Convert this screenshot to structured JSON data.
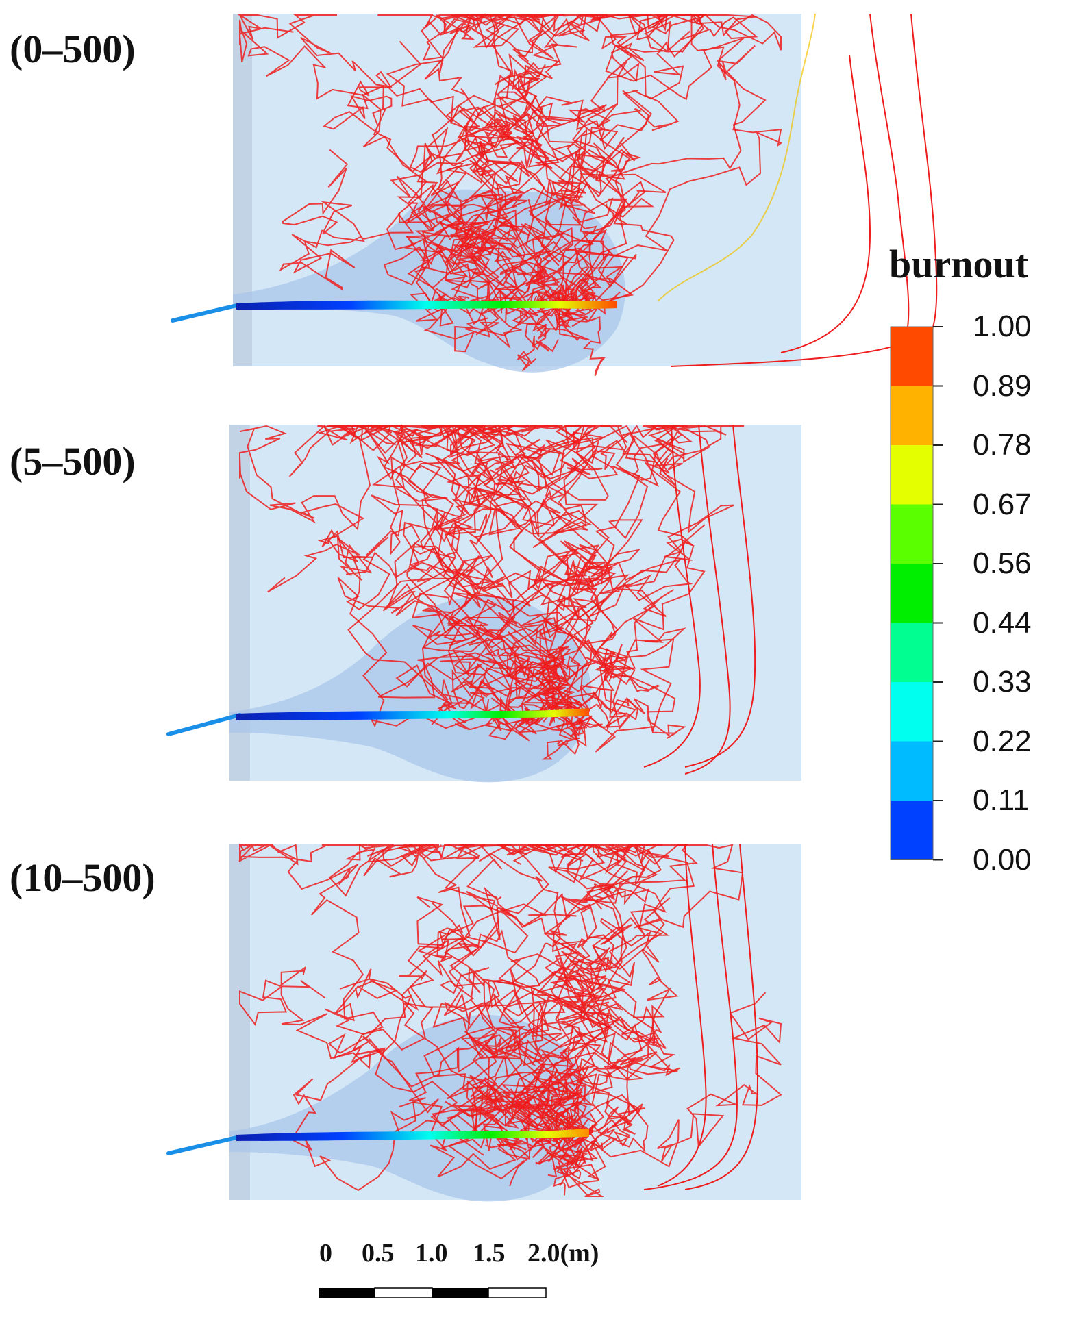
{
  "panels": [
    {
      "label": "(0–500)"
    },
    {
      "label": "(5–500)"
    },
    {
      "label": "(10–500)"
    }
  ],
  "colorbar": {
    "title": "burnout",
    "ticks": [
      "1.00",
      "0.89",
      "0.78",
      "0.67",
      "0.56",
      "0.44",
      "0.33",
      "0.22",
      "0.11",
      "0.00"
    ],
    "colors": [
      "#ff4a00",
      "#ffb300",
      "#e4ff00",
      "#5aff00",
      "#00ee00",
      "#00ff90",
      "#00ffee",
      "#00bbff",
      "#0040ff"
    ]
  },
  "scale_bar": {
    "labels": [
      "0",
      "0.5",
      "1.0",
      "1.5",
      "2.0(m)"
    ]
  },
  "colors": {
    "background": "#d3e7f6",
    "flame": "#a9c6ea",
    "trajectory": "#ee1c1c"
  }
}
